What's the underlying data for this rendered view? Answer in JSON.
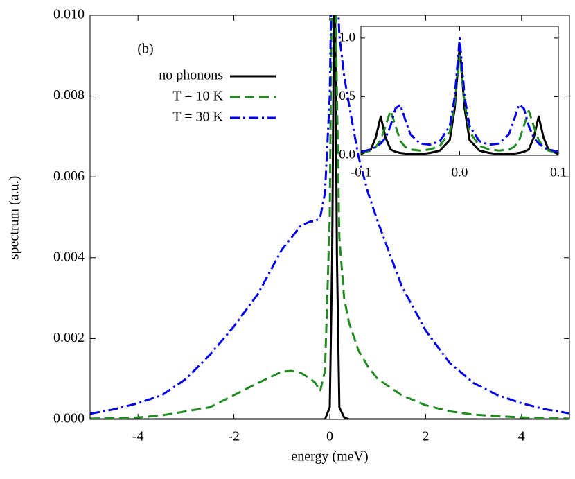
{
  "chart_data": [
    {
      "type": "line",
      "xlabel": "energy (meV)",
      "ylabel": "spectrum (a.u.)",
      "annotation": "(b)",
      "legend": "upper left",
      "xlim": [
        -5,
        5
      ],
      "ylim": [
        0,
        0.01
      ],
      "xticks": [
        -4,
        -2,
        0,
        2,
        4
      ],
      "yticks": [
        {
          "value": 0,
          "label": "0.000"
        },
        {
          "value": 0.002,
          "label": "0.002"
        },
        {
          "value": 0.004,
          "label": "0.004"
        },
        {
          "value": 0.006,
          "label": "0.006"
        },
        {
          "value": 0.008,
          "label": "0.008"
        },
        {
          "value": 0.01,
          "label": "0.010"
        }
      ],
      "x": [
        -5,
        -4.5,
        -4,
        -3.5,
        -3,
        -2.5,
        -2,
        -1.5,
        -1,
        -0.8,
        -0.6,
        -0.4,
        -0.3,
        -0.2,
        -0.1,
        0,
        0.05,
        0.1,
        0.15,
        0.2,
        0.3,
        0.4,
        0.6,
        0.8,
        1,
        1.5,
        2,
        2.5,
        3,
        3.5,
        4,
        4.5,
        5
      ],
      "series": [
        {
          "name": "no phonons",
          "color": "#000000",
          "dash": "solid",
          "values": [
            0,
            0,
            0,
            0,
            0,
            0,
            0,
            0,
            0,
            0,
            0,
            0,
            0,
            0,
            0,
            0.0003,
            0.004,
            0.012,
            0.004,
            0.0003,
            5e-05,
            0,
            0,
            0,
            0,
            0,
            0,
            0,
            0,
            0,
            0,
            0,
            0
          ]
        },
        {
          "name": "T = 10 K",
          "color": "#228b22",
          "dash": "dashed",
          "values": [
            2e-05,
            3e-05,
            5e-05,
            0.0001,
            0.0002,
            0.0003,
            0.0006,
            0.0009,
            0.00118,
            0.0012,
            0.00115,
            0.001,
            0.0009,
            0.0007,
            0.0012,
            0.005,
            0.012,
            0.012,
            0.008,
            0.0045,
            0.003,
            0.0024,
            0.0017,
            0.0013,
            0.001,
            0.0006,
            0.00035,
            0.0002,
            0.00012,
            8e-05,
            5e-05,
            3e-05,
            2e-05
          ]
        },
        {
          "name": "T = 30 K",
          "color": "#0000ee",
          "dash": "dashdot",
          "values": [
            0.00014,
            0.00025,
            0.0004,
            0.0006,
            0.001,
            0.0016,
            0.0023,
            0.0031,
            0.0042,
            0.0045,
            0.0048,
            0.0049,
            0.0049,
            0.005,
            0.0056,
            0.008,
            0.012,
            0.012,
            0.011,
            0.0095,
            0.0085,
            0.0078,
            0.0065,
            0.0056,
            0.0049,
            0.0033,
            0.0022,
            0.0014,
            0.0009,
            0.0006,
            0.0004,
            0.00025,
            0.00015
          ]
        }
      ]
    },
    {
      "type": "line",
      "xlim": [
        -0.1,
        0.1
      ],
      "ylim": [
        0,
        1.1
      ],
      "xticks": [
        {
          "value": -0.1,
          "label": "-0.1"
        },
        {
          "value": 0,
          "label": "0.0"
        },
        {
          "value": 0.1,
          "label": "0.1"
        }
      ],
      "yticks": [
        {
          "value": 0,
          "label": "0.0"
        },
        {
          "value": 0.5,
          "label": "0.5"
        },
        {
          "value": 1,
          "label": "1.0"
        }
      ],
      "x": [
        -0.1,
        -0.09,
        -0.085,
        -0.08,
        -0.075,
        -0.07,
        -0.065,
        -0.06,
        -0.055,
        -0.05,
        -0.04,
        -0.03,
        -0.02,
        -0.01,
        -0.005,
        0,
        0.005,
        0.01,
        0.02,
        0.03,
        0.04,
        0.05,
        0.055,
        0.06,
        0.065,
        0.07,
        0.075,
        0.08,
        0.085,
        0.09,
        0.1
      ],
      "series": [
        {
          "color": "#000000",
          "dash": "solid",
          "values": [
            0.01,
            0.05,
            0.15,
            0.33,
            0.15,
            0.05,
            0.03,
            0.02,
            0.015,
            0.01,
            0.01,
            0.02,
            0.04,
            0.13,
            0.4,
            0.93,
            0.4,
            0.13,
            0.04,
            0.02,
            0.01,
            0.01,
            0.015,
            0.02,
            0.03,
            0.05,
            0.15,
            0.33,
            0.15,
            0.05,
            0.01
          ]
        },
        {
          "color": "#228b22",
          "dash": "dashed",
          "values": [
            0.02,
            0.04,
            0.07,
            0.13,
            0.25,
            0.38,
            0.25,
            0.12,
            0.07,
            0.05,
            0.04,
            0.05,
            0.08,
            0.2,
            0.45,
            0.85,
            0.45,
            0.2,
            0.08,
            0.05,
            0.04,
            0.05,
            0.07,
            0.12,
            0.25,
            0.38,
            0.25,
            0.13,
            0.07,
            0.04,
            0.02
          ]
        },
        {
          "color": "#0000ee",
          "dash": "dashdot",
          "values": [
            0.03,
            0.05,
            0.07,
            0.1,
            0.15,
            0.25,
            0.4,
            0.43,
            0.3,
            0.18,
            0.1,
            0.09,
            0.12,
            0.25,
            0.5,
            1,
            0.5,
            0.25,
            0.12,
            0.09,
            0.1,
            0.18,
            0.3,
            0.43,
            0.4,
            0.25,
            0.15,
            0.1,
            0.07,
            0.05,
            0.03
          ]
        }
      ]
    }
  ]
}
